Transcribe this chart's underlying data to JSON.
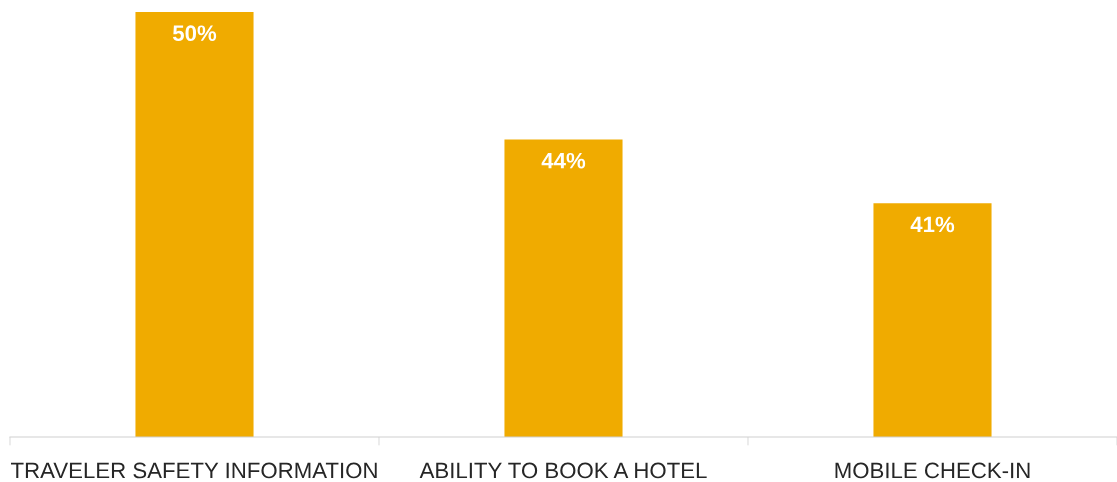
{
  "chart_data": {
    "type": "bar",
    "categories": [
      "TRAVELER SAFETY INFORMATION",
      "ABILITY TO BOOK A HOTEL",
      "MOBILE CHECK-IN"
    ],
    "values": [
      50,
      44,
      41
    ],
    "value_labels": [
      "50%",
      "44%",
      "41%"
    ],
    "color": "#f0ab00",
    "ylim": [
      30,
      50
    ],
    "tick_labels": "x",
    "grid": false,
    "legend": false
  }
}
